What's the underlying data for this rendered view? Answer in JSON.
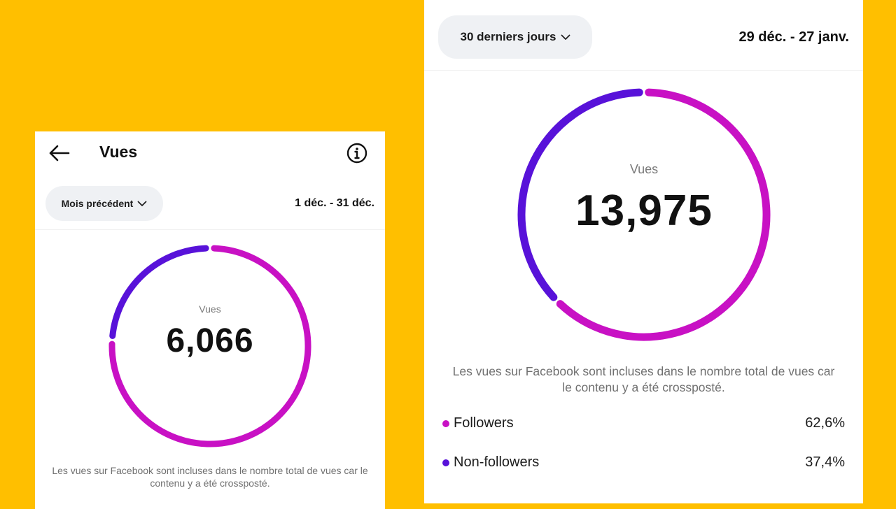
{
  "colors": {
    "background": "#FFBF00",
    "followers": "#C811C4",
    "non_followers": "#5812D9"
  },
  "left_panel": {
    "title": "Vues",
    "back_icon": "back-arrow-icon",
    "info_icon": "info-icon",
    "period_dropdown": "Mois précédent",
    "date_range": "1 déc. - 31 déc.",
    "ring": {
      "label": "Vues",
      "value": "6,066",
      "followers_fraction": 0.76,
      "non_followers_fraction": 0.24
    },
    "note": "Les vues sur Facebook sont incluses dans le nombre total de vues car le contenu y a été crossposté."
  },
  "right_panel": {
    "period_dropdown": "30 derniers jours",
    "date_range": "29 déc. - 27 janv.",
    "ring": {
      "label": "Vues",
      "value": "13,975",
      "followers_fraction": 0.626,
      "non_followers_fraction": 0.374
    },
    "note": "Les vues sur Facebook sont incluses dans le nombre total de vues car le contenu y a été crossposté.",
    "legend": [
      {
        "name": "Followers",
        "percent": "62,6%"
      },
      {
        "name": "Non-followers",
        "percent": "37,4%"
      }
    ]
  }
}
